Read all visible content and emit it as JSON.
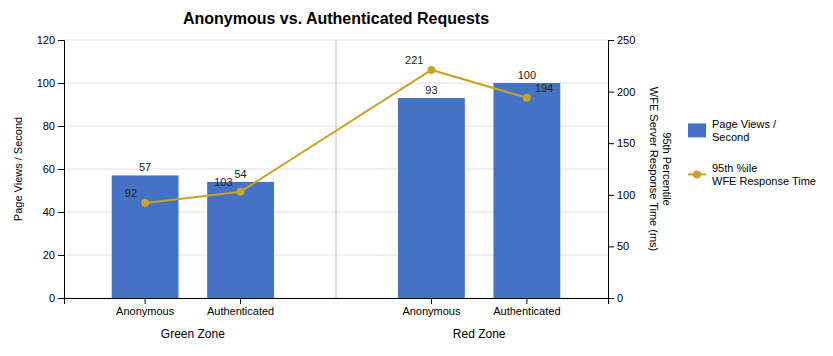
{
  "chart_data": {
    "type": "bar",
    "title": "Anonymous vs. Authenticated Requests",
    "categories": [
      "Anonymous",
      "Authenticated",
      "Anonymous",
      "Authenticated"
    ],
    "group_labels": [
      "Green Zone",
      "Red Zone"
    ],
    "series": [
      {
        "name": "Page Views /\nSecond",
        "type": "bar",
        "color": "#4472C4",
        "values": [
          57,
          54,
          93,
          100
        ]
      },
      {
        "name": "95th %ile\nWFE Response Time",
        "type": "line",
        "color": "#C9A227",
        "marker": "circle",
        "axis": "y2",
        "values": [
          92,
          103,
          221,
          194
        ]
      }
    ],
    "ylabel": "Page Views / Second",
    "y2label": "95th Percentile\nWFE Server Response Time (ms)",
    "ylim": [
      0,
      120
    ],
    "yticks": [
      0,
      20,
      40,
      60,
      80,
      100,
      120
    ],
    "y2lim": [
      0,
      250
    ],
    "y2ticks": [
      0,
      50,
      100,
      150,
      200,
      250
    ],
    "grid": true,
    "legend": "right",
    "data_labels": true
  }
}
